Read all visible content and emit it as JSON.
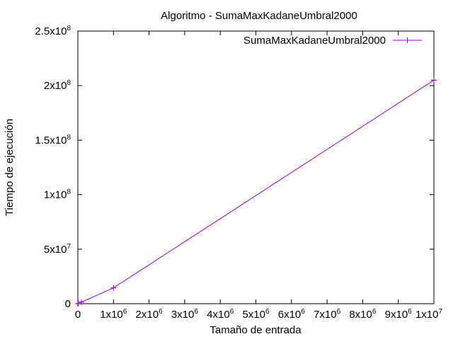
{
  "chart_data": {
    "type": "line",
    "title": "Algoritmo - SumaMaxKadaneUmbral2000",
    "xlabel": "Tamaño de entrada",
    "ylabel": "Tiempo de ejecución",
    "xlim": [
      0,
      10000000
    ],
    "ylim": [
      0,
      250000000
    ],
    "grid": false,
    "legend_position": "top-right",
    "x_ticks": [
      {
        "value": 0,
        "base": "0",
        "exp": ""
      },
      {
        "value": 1000000,
        "base": "1x10",
        "exp": "6"
      },
      {
        "value": 2000000,
        "base": "2x10",
        "exp": "6"
      },
      {
        "value": 3000000,
        "base": "3x10",
        "exp": "6"
      },
      {
        "value": 4000000,
        "base": "4x10",
        "exp": "6"
      },
      {
        "value": 5000000,
        "base": "5x10",
        "exp": "6"
      },
      {
        "value": 6000000,
        "base": "6x10",
        "exp": "6"
      },
      {
        "value": 7000000,
        "base": "7x10",
        "exp": "6"
      },
      {
        "value": 8000000,
        "base": "8x10",
        "exp": "6"
      },
      {
        "value": 9000000,
        "base": "9x10",
        "exp": "6"
      },
      {
        "value": 10000000,
        "base": "1x10",
        "exp": "7"
      }
    ],
    "y_ticks": [
      {
        "value": 0,
        "base": "0",
        "exp": ""
      },
      {
        "value": 50000000,
        "base": "5x10",
        "exp": "7"
      },
      {
        "value": 100000000,
        "base": "1x10",
        "exp": "8"
      },
      {
        "value": 150000000,
        "base": "1.5x10",
        "exp": "8"
      },
      {
        "value": 200000000,
        "base": "2x10",
        "exp": "8"
      },
      {
        "value": 250000000,
        "base": "2.5x10",
        "exp": "8"
      }
    ],
    "series": [
      {
        "name": "SumaMaxKadaneUmbral2000",
        "color": "#9400d3",
        "marker": "plus",
        "x": [
          0,
          10000,
          100000,
          1000000,
          10000000
        ],
        "y": [
          0,
          150000,
          1400000,
          14500000,
          205000000
        ]
      }
    ]
  }
}
